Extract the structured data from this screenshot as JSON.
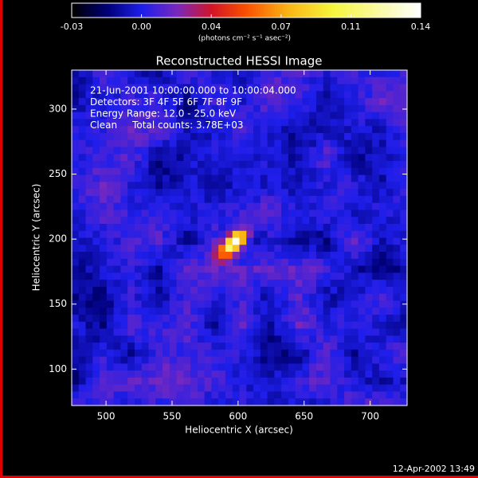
{
  "chart_data": {
    "type": "image",
    "title": "Reconstructed HESSI Image",
    "xlabel": "Heliocentric X (arcsec)",
    "ylabel": "Heliocentric Y (arcsec)",
    "xlim": [
      474,
      728
    ],
    "ylim": [
      72,
      330
    ],
    "xticks": [
      500,
      550,
      600,
      650,
      700
    ],
    "yticks": [
      100,
      150,
      200,
      250,
      300
    ],
    "annotations": [
      "21-Jun-2001 10:00:00.000 to 10:00:04.000",
      "Detectors: 3F 4F 5F 6F 7F 8F 9F",
      "Energy Range: 12.0 - 25.0 keV",
      "Clean     Total counts: 3.78E+03"
    ],
    "colorbar": {
      "lim": [
        -0.03,
        0.14
      ],
      "label": "(photons cm⁻² s⁻¹ asec⁻²)",
      "ticks": [
        -0.03,
        {
          "value": 0.004,
          "label": "0.00"
        },
        {
          "value": 0.038,
          "label": "0.04"
        },
        {
          "value": 0.072,
          "label": "0.07"
        },
        {
          "value": 0.106,
          "label": "0.11"
        },
        0.14
      ]
    },
    "source": {
      "x": 594,
      "y": 194,
      "value": 0.14
    },
    "timestamp": "12-Apr-2002 13:49"
  }
}
